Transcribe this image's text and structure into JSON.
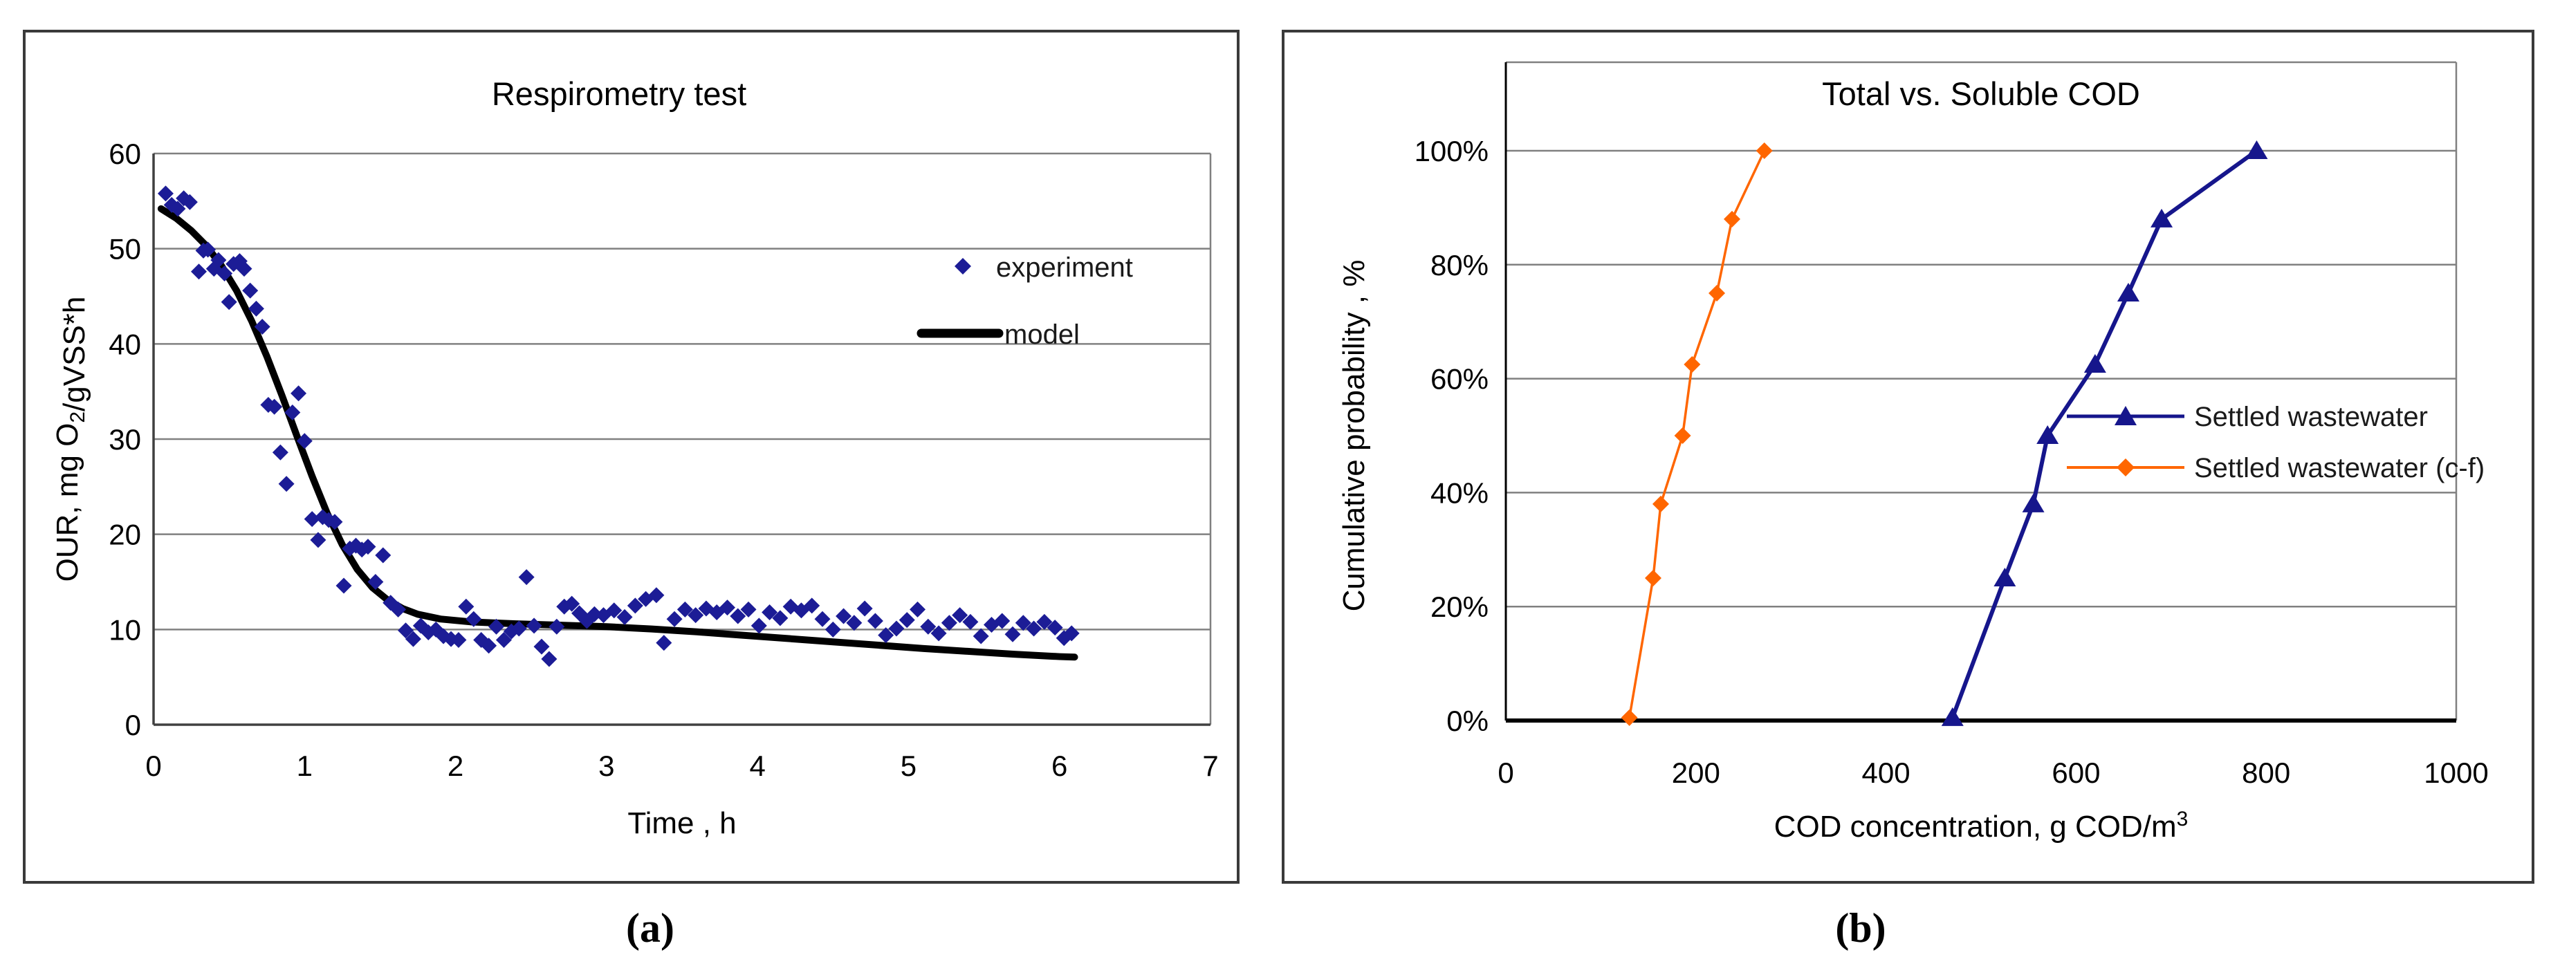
{
  "figure": {
    "background": "#ffffff",
    "panels": [
      {
        "caption": "(a)"
      },
      {
        "caption": "(b)"
      }
    ]
  },
  "colors": {
    "grid": "#808080",
    "axis_dark": "#404040",
    "axis_black": "#000000",
    "experiment_navy": "#1c1c96",
    "settled_navy": "#16168c",
    "orange": "#ff6600",
    "text": "#000000"
  },
  "chart_data": [
    {
      "type": "scatter",
      "title": "Respirometry test",
      "xlabel": "Time , h",
      "ylabel": "OUR, mg O2/gVSS*h",
      "ylabel_parts": [
        {
          "t": "OUR, mg O"
        },
        {
          "t": "2",
          "sub": true
        },
        {
          "t": "/gVSS*h"
        }
      ],
      "xlim": [
        0,
        7
      ],
      "ylim": [
        0,
        60
      ],
      "xticks": [
        0,
        1,
        2,
        3,
        4,
        5,
        6,
        7
      ],
      "yticks": [
        0,
        10,
        20,
        30,
        40,
        50,
        60
      ],
      "grid": "horizontal",
      "legend_position": "inside-right",
      "series": [
        {
          "name": "experiment",
          "kind": "scatter",
          "marker": "diamond",
          "color": "#1c1c96",
          "points": [
            [
              0.08,
              55.8
            ],
            [
              0.12,
              54.6
            ],
            [
              0.16,
              54.2
            ],
            [
              0.2,
              55.3
            ],
            [
              0.24,
              54.9
            ],
            [
              0.3,
              47.6
            ],
            [
              0.33,
              49.8
            ],
            [
              0.36,
              49.9
            ],
            [
              0.4,
              47.9
            ],
            [
              0.43,
              48.8
            ],
            [
              0.47,
              47.4
            ],
            [
              0.5,
              44.4
            ],
            [
              0.53,
              48.4
            ],
            [
              0.57,
              48.7
            ],
            [
              0.6,
              47.9
            ],
            [
              0.64,
              45.6
            ],
            [
              0.68,
              43.7
            ],
            [
              0.72,
              41.8
            ],
            [
              0.76,
              33.6
            ],
            [
              0.8,
              33.4
            ],
            [
              0.84,
              28.6
            ],
            [
              0.88,
              25.3
            ],
            [
              0.92,
              32.8
            ],
            [
              0.96,
              34.8
            ],
            [
              1.0,
              29.8
            ],
            [
              1.05,
              21.6
            ],
            [
              1.09,
              19.4
            ],
            [
              1.12,
              21.8
            ],
            [
              1.16,
              21.5
            ],
            [
              1.2,
              21.3
            ],
            [
              1.26,
              14.6
            ],
            [
              1.3,
              18.5
            ],
            [
              1.34,
              18.8
            ],
            [
              1.38,
              18.4
            ],
            [
              1.42,
              18.7
            ],
            [
              1.47,
              15.0
            ],
            [
              1.52,
              17.8
            ],
            [
              1.57,
              12.8
            ],
            [
              1.62,
              12.1
            ],
            [
              1.67,
              9.9
            ],
            [
              1.72,
              9.0
            ],
            [
              1.77,
              10.4
            ],
            [
              1.82,
              9.7
            ],
            [
              1.87,
              10.0
            ],
            [
              1.92,
              9.3
            ],
            [
              1.97,
              9.0
            ],
            [
              2.02,
              8.9
            ],
            [
              2.07,
              12.4
            ],
            [
              2.12,
              11.1
            ],
            [
              2.17,
              8.9
            ],
            [
              2.22,
              8.3
            ],
            [
              2.27,
              10.3
            ],
            [
              2.32,
              8.9
            ],
            [
              2.37,
              9.8
            ],
            [
              2.42,
              10.1
            ],
            [
              2.47,
              15.5
            ],
            [
              2.52,
              10.4
            ],
            [
              2.57,
              8.2
            ],
            [
              2.62,
              6.9
            ],
            [
              2.67,
              10.3
            ],
            [
              2.72,
              12.4
            ],
            [
              2.77,
              12.7
            ],
            [
              2.82,
              11.7
            ],
            [
              2.87,
              10.9
            ],
            [
              2.92,
              11.6
            ],
            [
              2.98,
              11.5
            ],
            [
              3.05,
              12.0
            ],
            [
              3.12,
              11.3
            ],
            [
              3.19,
              12.5
            ],
            [
              3.26,
              13.2
            ],
            [
              3.33,
              13.6
            ],
            [
              3.38,
              8.6
            ],
            [
              3.45,
              11.1
            ],
            [
              3.52,
              12.1
            ],
            [
              3.59,
              11.5
            ],
            [
              3.66,
              12.2
            ],
            [
              3.73,
              11.8
            ],
            [
              3.8,
              12.3
            ],
            [
              3.87,
              11.4
            ],
            [
              3.94,
              12.1
            ],
            [
              4.01,
              10.4
            ],
            [
              4.08,
              11.8
            ],
            [
              4.15,
              11.2
            ],
            [
              4.22,
              12.4
            ],
            [
              4.29,
              12.0
            ],
            [
              4.36,
              12.5
            ],
            [
              4.43,
              11.1
            ],
            [
              4.5,
              10.0
            ],
            [
              4.57,
              11.4
            ],
            [
              4.64,
              10.7
            ],
            [
              4.71,
              12.2
            ],
            [
              4.78,
              10.9
            ],
            [
              4.85,
              9.4
            ],
            [
              4.92,
              10.1
            ],
            [
              4.99,
              11.0
            ],
            [
              5.06,
              12.1
            ],
            [
              5.13,
              10.3
            ],
            [
              5.2,
              9.6
            ],
            [
              5.27,
              10.7
            ],
            [
              5.34,
              11.5
            ],
            [
              5.41,
              10.8
            ],
            [
              5.48,
              9.3
            ],
            [
              5.55,
              10.5
            ],
            [
              5.62,
              10.9
            ],
            [
              5.69,
              9.5
            ],
            [
              5.76,
              10.7
            ],
            [
              5.83,
              10.1
            ],
            [
              5.9,
              10.8
            ],
            [
              5.97,
              10.2
            ],
            [
              6.03,
              9.1
            ],
            [
              6.08,
              9.6
            ]
          ]
        },
        {
          "name": "model",
          "kind": "line",
          "color": "#000000",
          "stroke_width": 10,
          "points": [
            [
              0.05,
              54.2
            ],
            [
              0.15,
              53.2
            ],
            [
              0.25,
              51.9
            ],
            [
              0.35,
              50.3
            ],
            [
              0.45,
              48.2
            ],
            [
              0.55,
              45.6
            ],
            [
              0.65,
              42.4
            ],
            [
              0.75,
              38.7
            ],
            [
              0.85,
              34.6
            ],
            [
              0.95,
              30.3
            ],
            [
              1.05,
              26.1
            ],
            [
              1.15,
              22.2
            ],
            [
              1.25,
              18.9
            ],
            [
              1.35,
              16.3
            ],
            [
              1.45,
              14.4
            ],
            [
              1.55,
              13.1
            ],
            [
              1.65,
              12.2
            ],
            [
              1.75,
              11.6
            ],
            [
              1.9,
              11.1
            ],
            [
              2.1,
              10.8
            ],
            [
              2.4,
              10.6
            ],
            [
              2.7,
              10.45
            ],
            [
              3.0,
              10.3
            ],
            [
              3.3,
              10.05
            ],
            [
              3.6,
              9.75
            ],
            [
              3.9,
              9.4
            ],
            [
              4.2,
              9.05
            ],
            [
              4.5,
              8.7
            ],
            [
              4.8,
              8.35
            ],
            [
              5.1,
              8.0
            ],
            [
              5.4,
              7.7
            ],
            [
              5.7,
              7.4
            ],
            [
              6.0,
              7.15
            ],
            [
              6.1,
              7.1
            ]
          ]
        }
      ]
    },
    {
      "type": "line",
      "title": "Total vs. Soluble COD",
      "xlabel": "COD concentration, g COD/m3",
      "xlabel_parts": [
        {
          "t": "COD concentration, g COD/m"
        },
        {
          "t": "3",
          "sup": true
        }
      ],
      "ylabel": "Cumulative probability , %",
      "xlim": [
        0,
        1000
      ],
      "ylim": [
        0,
        100
      ],
      "xticks": [
        0,
        200,
        400,
        600,
        800,
        1000
      ],
      "ytick_labels": [
        "0%",
        "20%",
        "40%",
        "60%",
        "80%",
        "100%"
      ],
      "yticks": [
        0,
        20,
        40,
        60,
        80,
        100
      ],
      "grid": "horizontal",
      "legend_position": "inside-right",
      "series": [
        {
          "name": "Settled wastewater",
          "kind": "line-marker",
          "marker": "triangle",
          "color": "#16168c",
          "stroke_width": 6,
          "points": [
            [
              470,
              0.5
            ],
            [
              525,
              25
            ],
            [
              555,
              38
            ],
            [
              570,
              50
            ],
            [
              620,
              62.5
            ],
            [
              655,
              75
            ],
            [
              690,
              88
            ],
            [
              790,
              100
            ]
          ]
        },
        {
          "name": "Settled wastewater (c-f)",
          "kind": "line-marker",
          "marker": "diamond",
          "color": "#ff6600",
          "stroke_width": 3.5,
          "points": [
            [
              130,
              0.5
            ],
            [
              155,
              25
            ],
            [
              163,
              38
            ],
            [
              186,
              50
            ],
            [
              196,
              62.5
            ],
            [
              222,
              75
            ],
            [
              238,
              88
            ],
            [
              272,
              100
            ]
          ]
        }
      ]
    }
  ]
}
